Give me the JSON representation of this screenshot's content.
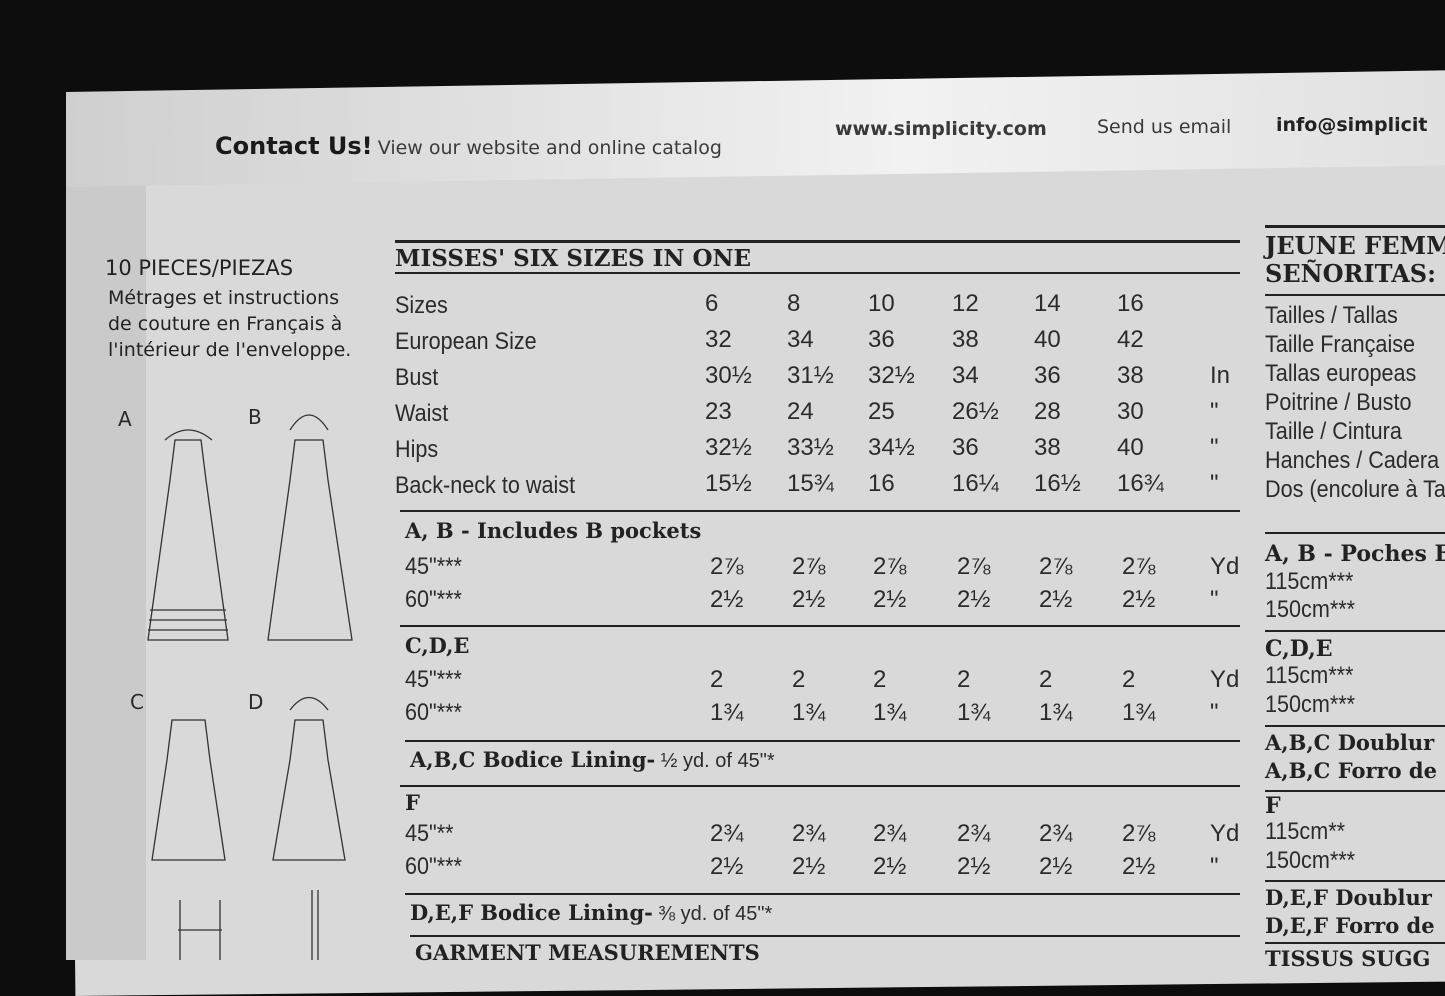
{
  "header": {
    "contact": "Contact Us!",
    "view": "View our website and online catalog",
    "website": "www.simplicity.com",
    "send": "Send us email",
    "email": "info@simplicit"
  },
  "left": {
    "pieces": "10 PIECES/PIEZAS",
    "french_note": [
      "Métrages et instructions",
      "de couture en Français à",
      "l'intérieur de l'enveloppe."
    ],
    "views": [
      "A",
      "B",
      "C",
      "D"
    ]
  },
  "table": {
    "title": "MISSES' SIX SIZES IN ONE",
    "rows": [
      {
        "label": "Sizes",
        "values": [
          "6",
          "8",
          "10",
          "12",
          "14",
          "16"
        ],
        "unit": ""
      },
      {
        "label": "European Size",
        "values": [
          "32",
          "34",
          "36",
          "38",
          "40",
          "42"
        ],
        "unit": ""
      },
      {
        "label": "Bust",
        "values": [
          "30½",
          "31½",
          "32½",
          "34",
          "36",
          "38"
        ],
        "unit": "In"
      },
      {
        "label": "Waist",
        "values": [
          "23",
          "24",
          "25",
          "26½",
          "28",
          "30"
        ],
        "unit": "\""
      },
      {
        "label": "Hips",
        "values": [
          "32½",
          "33½",
          "34½",
          "36",
          "38",
          "40"
        ],
        "unit": "\""
      },
      {
        "label": "Back-neck to waist",
        "values": [
          "15½",
          "15¾",
          "16",
          "16¼",
          "16½",
          "16¾"
        ],
        "unit": "\""
      }
    ],
    "sections": [
      {
        "title": "A, B - Includes B pockets",
        "rows": [
          {
            "label": "45\"***",
            "values": [
              "2⅞",
              "2⅞",
              "2⅞",
              "2⅞",
              "2⅞",
              "2⅞"
            ],
            "unit": "Yd"
          },
          {
            "label": "60\"***",
            "values": [
              "2½",
              "2½",
              "2½",
              "2½",
              "2½",
              "2½"
            ],
            "unit": "\""
          }
        ]
      },
      {
        "title": "C,D,E",
        "rows": [
          {
            "label": "45\"***",
            "values": [
              "2",
              "2",
              "2",
              "2",
              "2",
              "2"
            ],
            "unit": "Yd"
          },
          {
            "label": "60\"***",
            "values": [
              "1¾",
              "1¾",
              "1¾",
              "1¾",
              "1¾",
              "1¾"
            ],
            "unit": "\""
          }
        ]
      },
      {
        "title": "F",
        "rows": [
          {
            "label": "45\"**",
            "values": [
              "2¾",
              "2¾",
              "2¾",
              "2¾",
              "2¾",
              "2⅞"
            ],
            "unit": "Yd"
          },
          {
            "label": "60\"***",
            "values": [
              "2½",
              "2½",
              "2½",
              "2½",
              "2½",
              "2½"
            ],
            "unit": "\""
          }
        ]
      }
    ],
    "lining_abc": {
      "bold": "A,B,C Bodice Lining-",
      "rest": " ½ yd. of 45\"*"
    },
    "lining_def": {
      "bold": "D,E,F Bodice Lining-",
      "rest": " ⅜ yd. of 45\"*"
    },
    "garment": "GARMENT MEASUREMENTS"
  },
  "right": {
    "title": [
      "JEUNE FEMM",
      "SEÑORITAS:"
    ],
    "labels": [
      "Tailles / Tallas",
      "Taille Française",
      "Tallas europeas",
      "Poitrine / Busto",
      "Taille / Cintura",
      "Hanches / Cadera",
      "Dos (encolure à Ta"
    ],
    "ab": "A, B - Poches B",
    "ab_rows": [
      "115cm***",
      "150cm***"
    ],
    "cde": "C,D,E",
    "cde_rows": [
      "115cm***",
      "150cm***"
    ],
    "abc": [
      "A,B,C Doublur",
      "A,B,C Forro de"
    ],
    "f": "F",
    "f_rows": [
      "115cm**",
      "150cm***"
    ],
    "def": [
      "D,E,F Doublur",
      "D,E,F Forro de"
    ],
    "tissus": "TISSUS SUGG"
  }
}
